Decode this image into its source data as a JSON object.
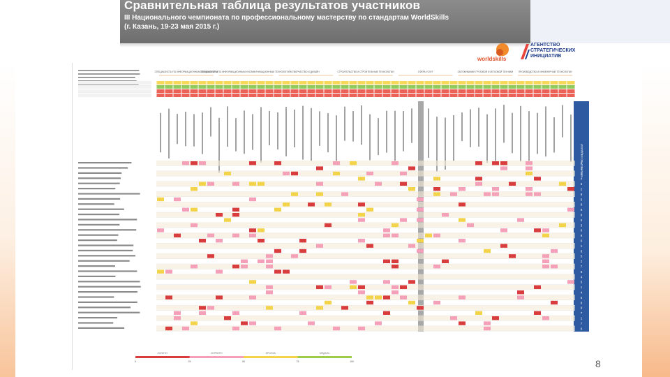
{
  "header": {
    "title": "Сравнительная таблица результатов участников",
    "subtitle_line1": "III Национального чемпионата по профессиональному мастерству по стандартам WorldSkills",
    "subtitle_line2": "(г. Казань, 19-23 мая 2015 г.)"
  },
  "logos": {
    "worldskills": "worldskills",
    "asi_line1": "АГЕНТСТВО",
    "asi_line2": "СТРАТЕГИЧЕСКИХ",
    "asi_line3": "ИНИЦИАТИВ"
  },
  "page_number": "8",
  "colors": {
    "banner": "#7b7b7b",
    "header_yellow": "#f5d23c",
    "header_green": "#7fbf3f",
    "header_red": "#e8463c",
    "cell_pink": "#f4a0b8",
    "cell_red": "#d83c3c",
    "cell_yellow": "#f3d34a",
    "row_tint": "#f4ebd6",
    "grey_column": "#a8a8a8",
    "blue_column": "#2d5aa0"
  },
  "table": {
    "group_headers": [
      "СПЕЦИАЛИСТЫ ПО ИНФОРМАЦИОННЫМ ТЕХНОЛОГИЯМ",
      "СПЕЦИАЛИСТЫ ПО ИНФОРМАЦИОННЫМ И КОММУНИКАЦИОННЫМ ТЕХНОЛОГИЯМ",
      "ТВОРЧЕСТВО И ДИЗАЙН",
      "СТРОИТЕЛЬСТВО И СТРОИТЕЛЬНЫЕ ТЕХНОЛОГИИ",
      "СФЕРА УСЛУГ",
      "ОБЛУЖИВАНИЕ ГРУЗОВОЙ И ЛЕГКОВОЙ ТЕХНИКИ",
      "ПРОИЗВОДСТВО И ИНЖЕНЕРНЫЕ ТЕХНОЛОГИИ"
    ],
    "right_column_label": "КОЛИЧЕСТВО МЕДАЛЕЙ"
  },
  "legend": {
    "items": [
      "ЗОЛОТО",
      "СЕРЕБРО",
      "БРОНЗА",
      "МЕДАЛЬ"
    ],
    "ticks": [
      "0",
      "25",
      "50",
      "75",
      "100"
    ]
  }
}
